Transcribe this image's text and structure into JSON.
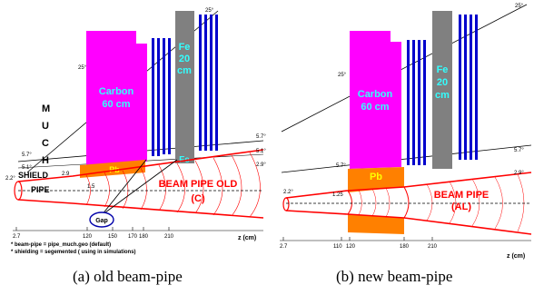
{
  "panels": {
    "a": {
      "caption": "(a) old beam-pipe",
      "carbon_label": "Carbon",
      "carbon_size": "60 cm",
      "fe_label": "Fe",
      "fe_size": "20",
      "fe_unit": "cm",
      "fe_small": "Fe",
      "pb_small": "Pb",
      "much_letters": [
        "M",
        "U",
        "C",
        "H"
      ],
      "shield_label": "SHIELD",
      "pipe_label": "PIPE",
      "beam_pipe_label": "BEAM PIPE OLD",
      "beam_pipe_material": "(C)",
      "gap_label": "Gap",
      "angles": [
        "25°",
        "25°",
        "5.7°",
        "5.7°",
        "5.1°",
        "5.1°",
        "2.9°",
        "2.9",
        "2.2°",
        "1.5"
      ],
      "axis_ticks": [
        "2.7",
        "120",
        "150",
        "170",
        "180",
        "210"
      ],
      "axis_label": "z (cm)",
      "notes": [
        "* beam-pipe = pipe_much.geo (default)",
        "* shielding = segemented ( using in simulations)"
      ]
    },
    "b": {
      "caption": "(b) new beam-pipe",
      "carbon_label": "Carbon",
      "carbon_size": "60 cm",
      "fe_label": "Fe",
      "fe_size": "20",
      "fe_unit": "cm",
      "pb_label": "Pb",
      "beam_pipe_label": "BEAM PIPE",
      "beam_pipe_material": "(AL)",
      "angles": [
        "25°",
        "25°",
        "5.7°",
        "5.7°",
        "2.9°",
        "2.2°",
        "1.25"
      ],
      "axis_ticks": [
        "2.7",
        "110",
        "120",
        "180",
        "210"
      ],
      "axis_label": "z (cm)"
    }
  },
  "colors": {
    "carbon": "#ff00ff",
    "iron": "#808080",
    "stations": "#0000cc",
    "lead": "#ff8000",
    "beam_pipe": "#ff0000",
    "fe_text": "#33ffff"
  }
}
